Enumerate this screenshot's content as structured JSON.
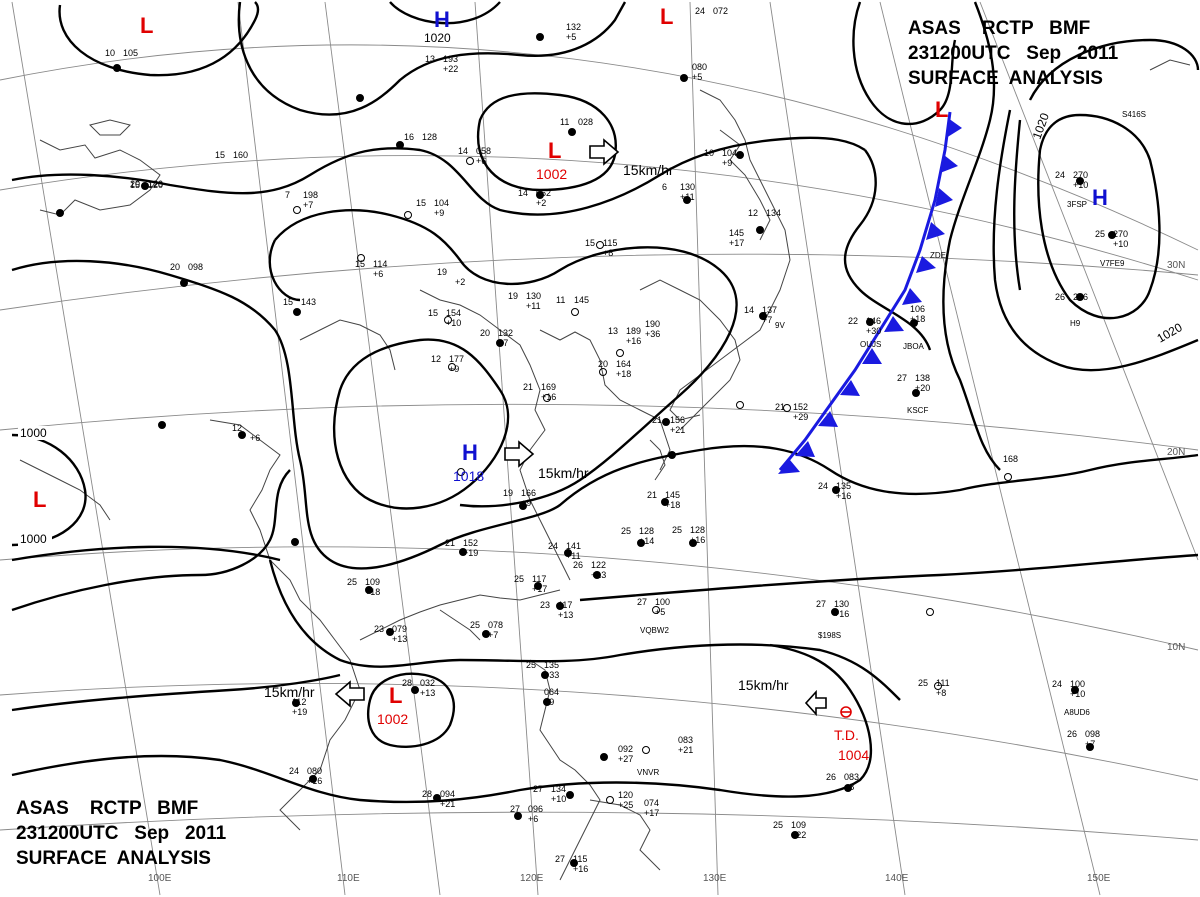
{
  "header": {
    "line1": "ASAS    RCTP   BMF",
    "line2": "231200UTC   Sep   2011",
    "line3": "SURFACE  ANALYSIS"
  },
  "footer": {
    "line1": "ASAS    RCTP   BMF",
    "line2": "231200UTC   Sep   2011",
    "line3": "SURFACE  ANALYSIS"
  },
  "pressure_centers": {
    "low_nw": {
      "symbol": "L",
      "color": "#e00000"
    },
    "high_top": {
      "symbol": "H",
      "value": "1020",
      "color": "#1010d0"
    },
    "low_top_center": {
      "symbol": "L",
      "color": "#e00000"
    },
    "low_ne_front": {
      "symbol": "L",
      "color": "#e00000"
    },
    "low_mongolia": {
      "symbol": "L",
      "value": "1002",
      "color": "#e00000"
    },
    "high_east": {
      "symbol": "H",
      "color": "#1010d0"
    },
    "low_west": {
      "symbol": "L",
      "color": "#e00000"
    },
    "high_china": {
      "symbol": "H",
      "value": "1018",
      "color": "#1010d0"
    },
    "low_southwest": {
      "symbol": "L",
      "value": "1002",
      "color": "#e00000"
    },
    "td": {
      "symbol": "T.D.",
      "value": "1004",
      "color": "#e00000"
    }
  },
  "movements": {
    "mongolia_low": "15km/hr",
    "china_high": "15km/hr",
    "southwest_low": "15km/hr",
    "td": "15km/hr"
  },
  "isobar_labels": {
    "w1": "1000",
    "w2": "1000",
    "e1": "1020",
    "e2": "1020"
  },
  "grid_labels": {
    "lat_30": "30N",
    "lat_20": "20N",
    "lat_10": "10N",
    "lon_100": "100E",
    "lon_110": "110E",
    "lon_120": "120E",
    "lon_130": "130E",
    "lon_140": "140E",
    "lon_150": "150E"
  },
  "colors": {
    "low": "#e00000",
    "high": "#1010d0",
    "cold_front": "#1a1ae0",
    "isobar": "#000000",
    "grid": "#8a8a8a",
    "coast": "#444444",
    "background": "#ffffff"
  },
  "stations": [
    {
      "t": "10",
      "p": "105"
    },
    {
      "t": "15",
      "p": "120"
    },
    {
      "t": "13",
      "p": "193",
      "d": "+22"
    },
    {
      "t": "11",
      "p": "028"
    },
    {
      "t": "",
      "p": "132",
      "d": "+5"
    },
    {
      "t": "15",
      "p": "160"
    },
    {
      "t": "14",
      "p": "058",
      "d": "+6"
    },
    {
      "t": "16",
      "p": "128"
    },
    {
      "t": "20",
      "p": "120"
    },
    {
      "t": "24",
      "p": "072"
    },
    {
      "t": "7",
      "p": "198",
      "d": "+7"
    },
    {
      "t": "15",
      "p": "104",
      "d": "+9"
    },
    {
      "t": "14",
      "p": "052",
      "d": "+2"
    },
    {
      "t": "6",
      "p": "130",
      "d": "+11"
    },
    {
      "t": "10",
      "p": "104",
      "d": "+9"
    },
    {
      "t": "15",
      "p": "114",
      "d": "+6"
    },
    {
      "t": "15",
      "p": "115",
      "d": "+8"
    },
    {
      "t": "",
      "p": "145",
      "d": "+17"
    },
    {
      "t": "12",
      "p": "134"
    },
    {
      "t": "20",
      "p": "098"
    },
    {
      "t": "15",
      "p": "143"
    },
    {
      "t": "19",
      "p": "130",
      "d": "+11"
    },
    {
      "t": "20",
      "p": "132",
      "d": "+7"
    },
    {
      "t": "15",
      "p": "154",
      "d": "+10"
    },
    {
      "t": "11",
      "p": "145"
    },
    {
      "t": "13",
      "p": "189",
      "d": "+16"
    },
    {
      "t": "",
      "p": "190",
      "d": "+36"
    },
    {
      "t": "14",
      "p": "137",
      "d": "+7"
    },
    {
      "t": "12",
      "p": "177",
      "d": "+9"
    },
    {
      "t": "21",
      "p": "169",
      "d": "+16"
    },
    {
      "t": "20",
      "p": "164",
      "d": "+18"
    },
    {
      "t": "22",
      "p": "146",
      "d": "+30"
    },
    {
      "t": "",
      "p": "106",
      "d": "+18"
    },
    {
      "t": "21",
      "p": "152",
      "d": "+29"
    },
    {
      "t": "27",
      "p": "138",
      "d": "+20"
    },
    {
      "t": "21",
      "p": "156",
      "d": "+21"
    },
    {
      "t": "19",
      "p": "166",
      "d": "+9"
    },
    {
      "t": "21",
      "p": "145",
      "d": "+18"
    },
    {
      "t": "24",
      "p": "135",
      "d": "+16"
    },
    {
      "t": "",
      "p": "168"
    },
    {
      "t": "21",
      "p": "152",
      "d": "+19"
    },
    {
      "t": "24",
      "p": "141",
      "d": "+11"
    },
    {
      "t": "25",
      "p": "128",
      "d": "+14"
    },
    {
      "t": "25",
      "p": "128",
      "d": "+16"
    },
    {
      "t": "26",
      "p": "122",
      "d": "+13"
    },
    {
      "t": "25",
      "p": "109",
      "d": "+18"
    },
    {
      "t": "25",
      "p": "117",
      "d": "+17"
    },
    {
      "t": "23",
      "p": "117",
      "d": "+13"
    },
    {
      "t": "27",
      "p": "100",
      "d": "+5"
    },
    {
      "t": "27",
      "p": "130",
      "d": "+16"
    },
    {
      "t": "23",
      "p": "079",
      "d": "+13"
    },
    {
      "t": "25",
      "p": "078",
      "d": "+7"
    },
    {
      "t": "28",
      "p": "032",
      "d": "+13"
    },
    {
      "t": "",
      "p": "112",
      "d": "+19"
    },
    {
      "t": "25",
      "p": "135",
      "d": "+33"
    },
    {
      "t": "",
      "p": "064",
      "d": "+9"
    },
    {
      "t": "25",
      "p": "111",
      "d": "+8"
    },
    {
      "t": "24",
      "p": "100",
      "d": "+10"
    },
    {
      "t": "",
      "p": "092",
      "d": "+27"
    },
    {
      "t": "",
      "p": "083",
      "d": "+21"
    },
    {
      "t": "26",
      "p": "098",
      "d": "+7"
    },
    {
      "t": "24",
      "p": "080",
      "d": "+16"
    },
    {
      "t": "28",
      "p": "094",
      "d": "+21"
    },
    {
      "t": "27",
      "p": "096",
      "d": "+6"
    },
    {
      "t": "27",
      "p": "134",
      "d": "+10"
    },
    {
      "t": "",
      "p": "120",
      "d": "+25"
    },
    {
      "t": "",
      "p": "074",
      "d": "+17"
    },
    {
      "t": "26",
      "p": "083",
      "d": "+8"
    },
    {
      "t": "25",
      "p": "109",
      "d": "+22"
    },
    {
      "t": "27",
      "p": "115",
      "d": "+16"
    },
    {
      "t": "12",
      "p": "",
      "d": "+6"
    },
    {
      "t": "19",
      "p": "",
      "d": "+2"
    },
    {
      "t": "24",
      "p": "270",
      "d": "+10"
    },
    {
      "t": "25",
      "p": "270",
      "d": "+10"
    },
    {
      "t": "26",
      "p": "256"
    },
    {
      "t": "",
      "p": "080",
      "d": "+5"
    }
  ],
  "ship_codes": [
    "3FSP",
    "V7FE9",
    "H9",
    "OUJS",
    "JBOA",
    "KSCF",
    "S416S",
    "VQBW2",
    "VNVR",
    "A8UD6",
    "$198S",
    "ZDE",
    "9V"
  ]
}
